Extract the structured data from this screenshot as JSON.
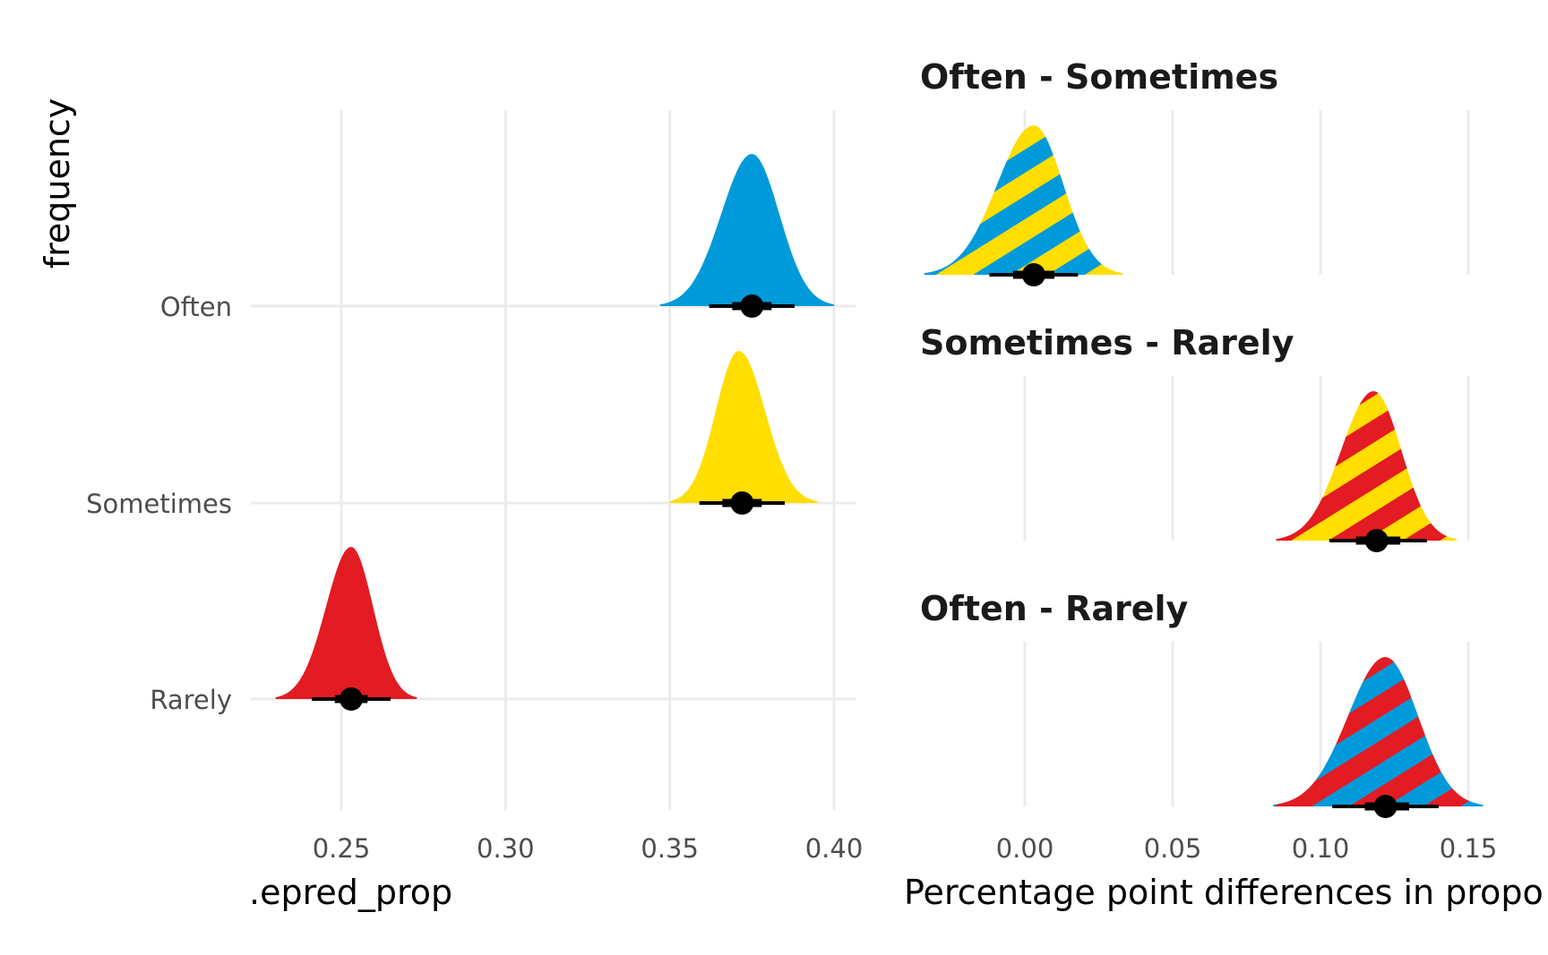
{
  "chart_data": [
    {
      "type": "halfeye",
      "xlabel": ".epred_prop",
      "ylabel": "frequency",
      "xlim": [
        0.225,
        0.405
      ],
      "x_ticks": [
        "0.25",
        "0.30",
        "0.35",
        "0.40"
      ],
      "x_tick_values": [
        0.25,
        0.3,
        0.35,
        0.4
      ],
      "grid": true,
      "series": [
        {
          "name": "Often",
          "color": "#009ADA",
          "median": 0.375,
          "interval_66": [
            0.369,
            0.381
          ],
          "interval_95": [
            0.362,
            0.388
          ],
          "density_range": [
            0.347,
            0.4
          ],
          "peak": 0.375
        },
        {
          "name": "Sometimes",
          "color": "#FFDE00",
          "median": 0.372,
          "interval_66": [
            0.366,
            0.378
          ],
          "interval_95": [
            0.359,
            0.385
          ],
          "density_range": [
            0.35,
            0.395
          ],
          "peak": 0.371
        },
        {
          "name": "Rarely",
          "color": "#E31B23",
          "median": 0.253,
          "interval_66": [
            0.248,
            0.258
          ],
          "interval_95": [
            0.241,
            0.265
          ],
          "density_range": [
            0.23,
            0.273
          ],
          "peak": 0.253
        }
      ]
    },
    {
      "type": "halfeye",
      "xlabel": "Percentage point differences in propo",
      "xlim": [
        -0.035,
        0.155
      ],
      "x_ticks": [
        "0.00",
        "0.05",
        "0.10",
        "0.15"
      ],
      "x_tick_values": [
        0.0,
        0.05,
        0.1,
        0.15
      ],
      "grid": true,
      "panels": [
        {
          "title": "Often - Sometimes",
          "colors": [
            "#009ADA",
            "#FFDE00"
          ],
          "median": 0.003,
          "interval_66": [
            -0.004,
            0.01
          ],
          "interval_95": [
            -0.012,
            0.018
          ],
          "density_range": [
            -0.034,
            0.033
          ],
          "peak": 0.003
        },
        {
          "title": "Sometimes - Rarely",
          "colors": [
            "#FFDE00",
            "#E31B23"
          ],
          "median": 0.119,
          "interval_66": [
            0.112,
            0.127
          ],
          "interval_95": [
            0.103,
            0.136
          ],
          "density_range": [
            0.085,
            0.146
          ],
          "peak": 0.118
        },
        {
          "title": "Often - Rarely",
          "colors": [
            "#009ADA",
            "#E31B23"
          ],
          "median": 0.122,
          "interval_66": [
            0.115,
            0.13
          ],
          "interval_95": [
            0.104,
            0.14
          ],
          "density_range": [
            0.084,
            0.155
          ],
          "peak": 0.122
        }
      ]
    }
  ]
}
